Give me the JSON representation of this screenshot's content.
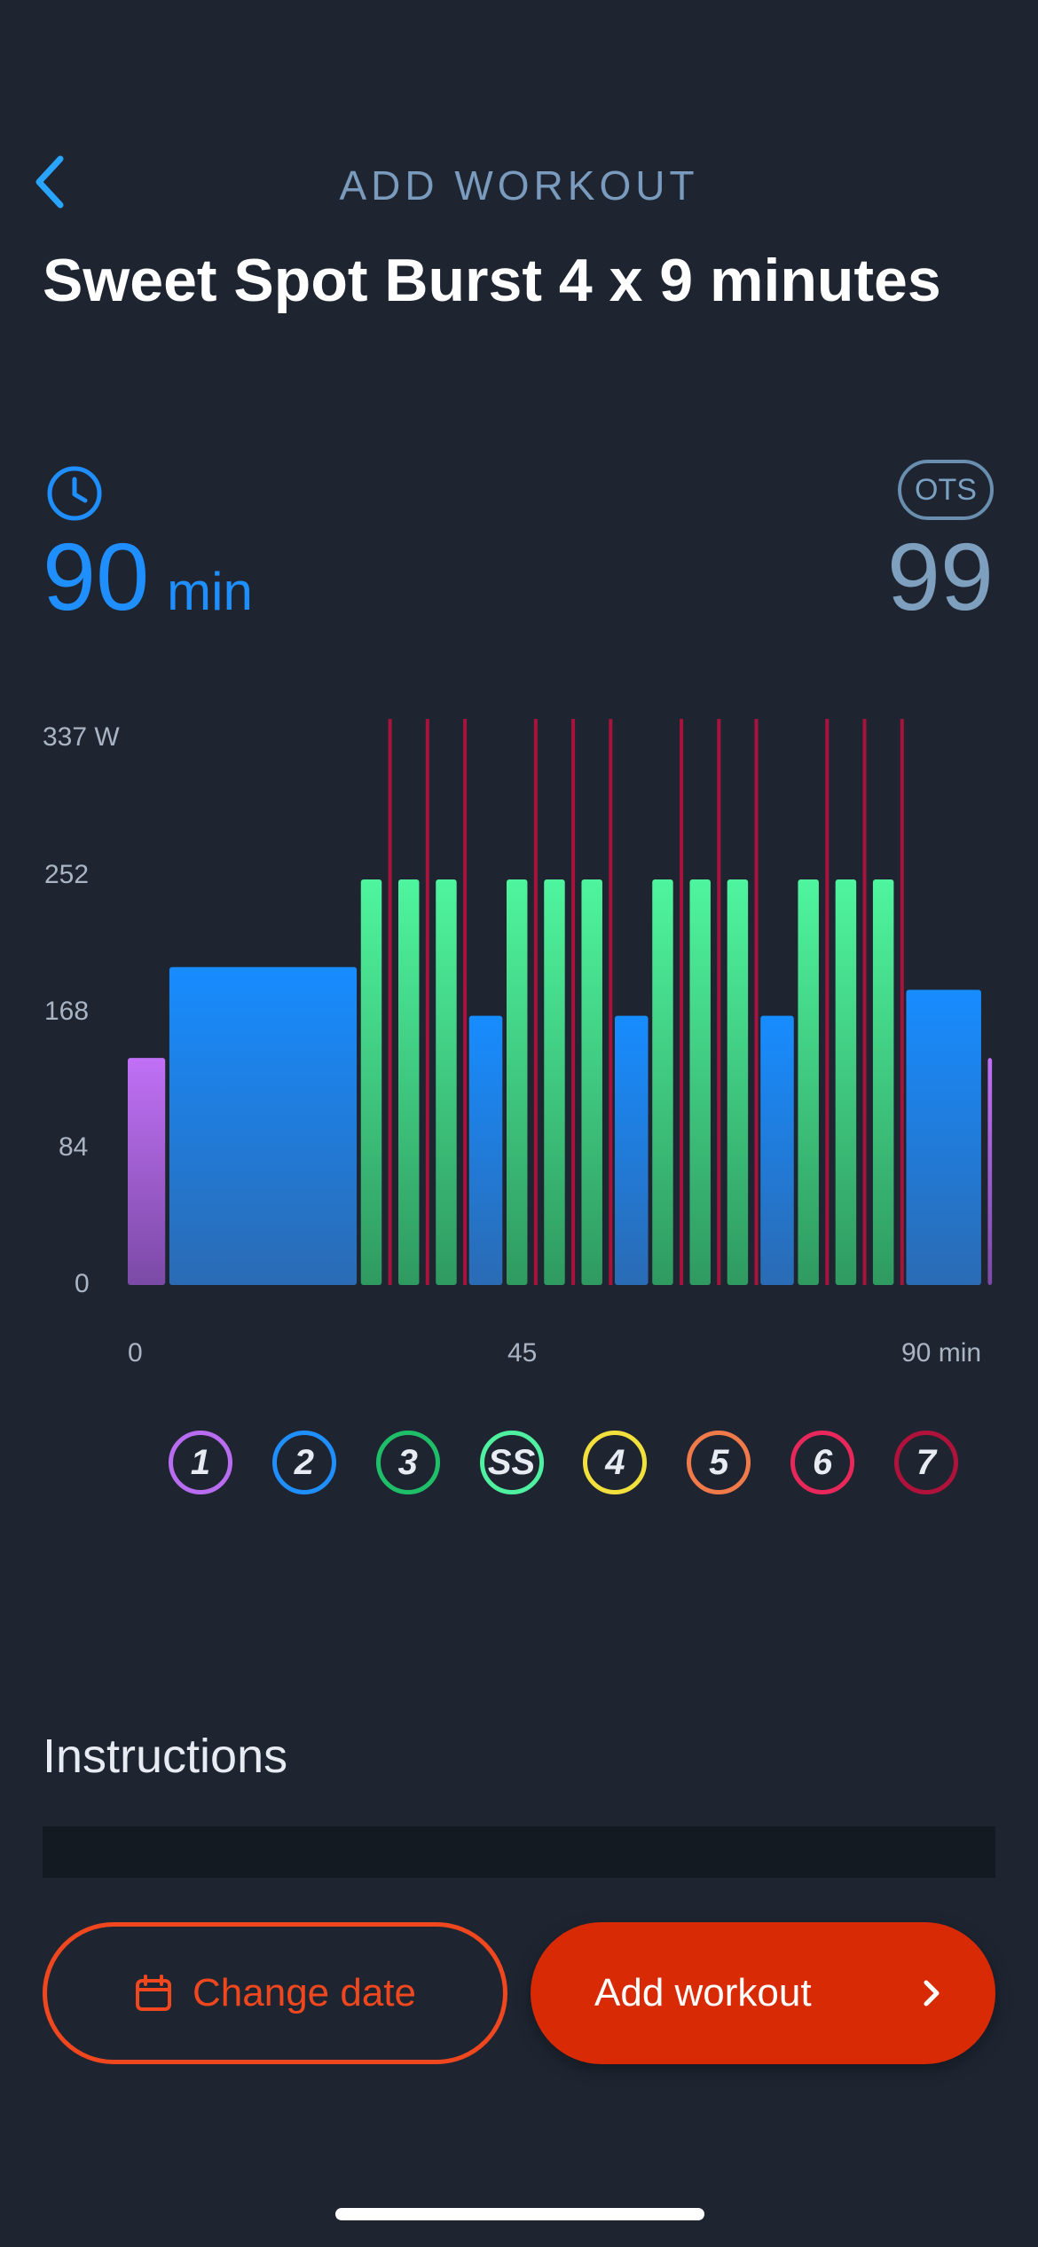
{
  "header": {
    "title": "ADD WORKOUT",
    "back_icon": "chevron-left-icon"
  },
  "workout": {
    "title": "Sweet Spot Burst 4 x 9 minutes",
    "duration_value": "90",
    "duration_unit": "min",
    "ots_label": "OTS",
    "ots_value": "99"
  },
  "colors": {
    "accent_blue": "#1f8fff",
    "zone1": "#b86cf0",
    "zone2": "#1f8fff",
    "zone3": "#1fbf6a",
    "zoneSS": "#4ff0a0",
    "zone4": "#f2e03c",
    "zone5": "#f07a4a",
    "zone6": "#e8285a",
    "zone7": "#b0123c",
    "primary_button": "#d92a06"
  },
  "chart_data": {
    "type": "bar",
    "ylabel": "W",
    "xlabel": "min",
    "ylim": [
      0,
      337
    ],
    "xlim": [
      0,
      90
    ],
    "y_ticks": [
      "337 W",
      "252",
      "168",
      "84",
      "0"
    ],
    "x_ticks": [
      "0",
      "45",
      "90 min"
    ],
    "segments": [
      {
        "start": 0,
        "end": 4.5,
        "watts": 140,
        "zone": "1"
      },
      {
        "start": 5,
        "end": 27.5,
        "watts": 196,
        "zone": "2"
      },
      {
        "start": 28,
        "end": 30.5,
        "watts": 250,
        "zone": "SS"
      },
      {
        "start": 32.5,
        "end": 35,
        "watts": 250,
        "zone": "SS"
      },
      {
        "start": 37,
        "end": 39.5,
        "watts": 250,
        "zone": "SS"
      },
      {
        "start": 41,
        "end": 45,
        "watts": 166,
        "zone": "2"
      },
      {
        "start": 45.5,
        "end": 48,
        "watts": 250,
        "zone": "SS"
      },
      {
        "start": 50,
        "end": 52.5,
        "watts": 250,
        "zone": "SS"
      },
      {
        "start": 54.5,
        "end": 57,
        "watts": 250,
        "zone": "SS"
      },
      {
        "start": 58.5,
        "end": 62.5,
        "watts": 166,
        "zone": "2"
      },
      {
        "start": 63,
        "end": 65.5,
        "watts": 250,
        "zone": "SS"
      },
      {
        "start": 67.5,
        "end": 70,
        "watts": 250,
        "zone": "SS"
      },
      {
        "start": 72,
        "end": 74.5,
        "watts": 250,
        "zone": "SS"
      },
      {
        "start": 76,
        "end": 80,
        "watts": 166,
        "zone": "2"
      },
      {
        "start": 80.5,
        "end": 83,
        "watts": 250,
        "zone": "SS"
      },
      {
        "start": 85,
        "end": 87.5,
        "watts": 250,
        "zone": "SS"
      },
      {
        "start": 89.5,
        "end": 92,
        "watts": 250,
        "zone": "SS"
      },
      {
        "start": 93.5,
        "end": 102.5,
        "watts": 182,
        "zone": "2"
      },
      {
        "start": 103.3,
        "end": 103.8,
        "watts": 140,
        "zone": "1"
      }
    ],
    "bursts": [
      {
        "x": 31.5,
        "watts": 349
      },
      {
        "x": 36,
        "watts": 349
      },
      {
        "x": 40.5,
        "watts": 349
      },
      {
        "x": 49,
        "watts": 349
      },
      {
        "x": 53.5,
        "watts": 349
      },
      {
        "x": 58,
        "watts": 349
      },
      {
        "x": 66.5,
        "watts": 349
      },
      {
        "x": 71,
        "watts": 349
      },
      {
        "x": 75.5,
        "watts": 349
      },
      {
        "x": 84,
        "watts": 349
      },
      {
        "x": 88.5,
        "watts": 349
      },
      {
        "x": 93,
        "watts": 349
      }
    ]
  },
  "zones": [
    {
      "label": "1",
      "color": "#b86cf0"
    },
    {
      "label": "2",
      "color": "#1f8fff"
    },
    {
      "label": "3",
      "color": "#1fbf6a"
    },
    {
      "label": "SS",
      "color": "#4ff0a0"
    },
    {
      "label": "4",
      "color": "#f2e03c"
    },
    {
      "label": "5",
      "color": "#f07a4a"
    },
    {
      "label": "6",
      "color": "#e8285a"
    },
    {
      "label": "7",
      "color": "#b0123c"
    }
  ],
  "instructions": {
    "title": "Instructions"
  },
  "actions": {
    "change_date": "Change date",
    "change_date_icon": "calendar-icon",
    "add_workout": "Add workout",
    "add_workout_icon": "chevron-right-icon"
  }
}
